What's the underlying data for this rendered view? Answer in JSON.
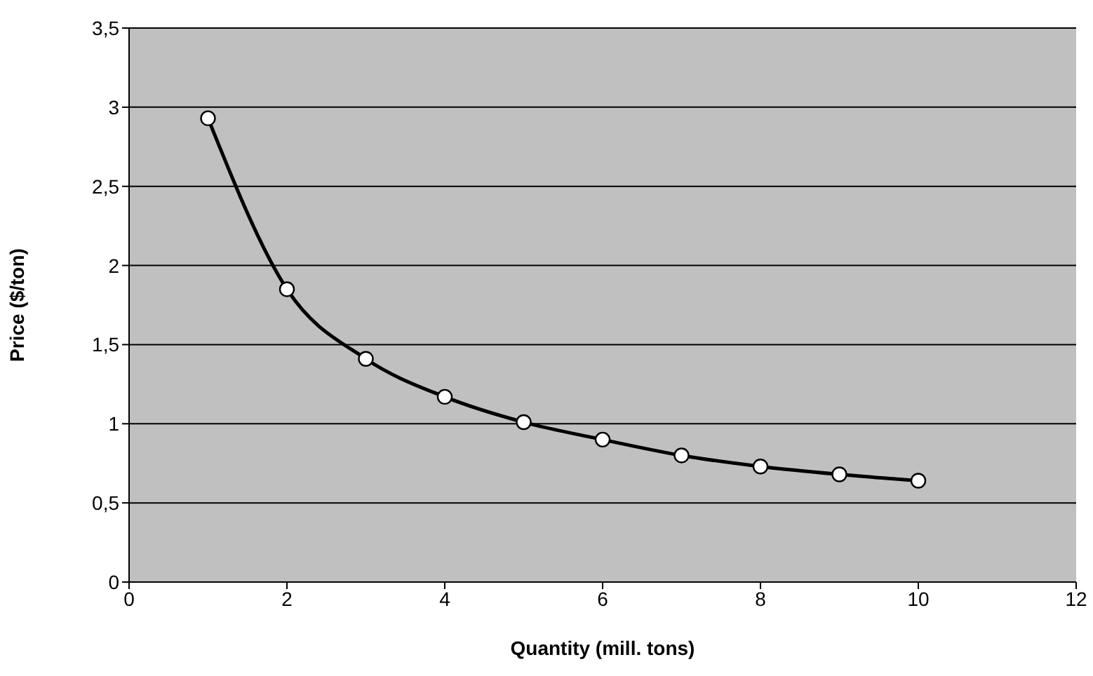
{
  "chart_data": {
    "type": "line",
    "xlabel": "Quantity (mill. tons)",
    "ylabel": "Price ($/ton)",
    "x": [
      1,
      2,
      3,
      4,
      5,
      6,
      7,
      8,
      9,
      10
    ],
    "series": [
      {
        "color": "#000000",
        "values": [
          2.93,
          1.85,
          1.41,
          1.17,
          1.01,
          0.9,
          0.8,
          0.73,
          0.68,
          0.64
        ]
      }
    ],
    "xlim": [
      0,
      12
    ],
    "xticks": [
      0,
      2,
      4,
      6,
      8,
      10,
      12
    ],
    "ylim": [
      0,
      3.5
    ],
    "yticks": [
      0,
      {
        "value": 0.5,
        "label": "0,5"
      },
      1,
      {
        "value": 1.5,
        "label": "1,5"
      },
      2,
      {
        "value": 2.5,
        "label": "2,5"
      },
      3,
      {
        "value": 3.5,
        "label": "3,5"
      }
    ],
    "grid": "y",
    "marker": "circle",
    "line_style": "solid"
  }
}
